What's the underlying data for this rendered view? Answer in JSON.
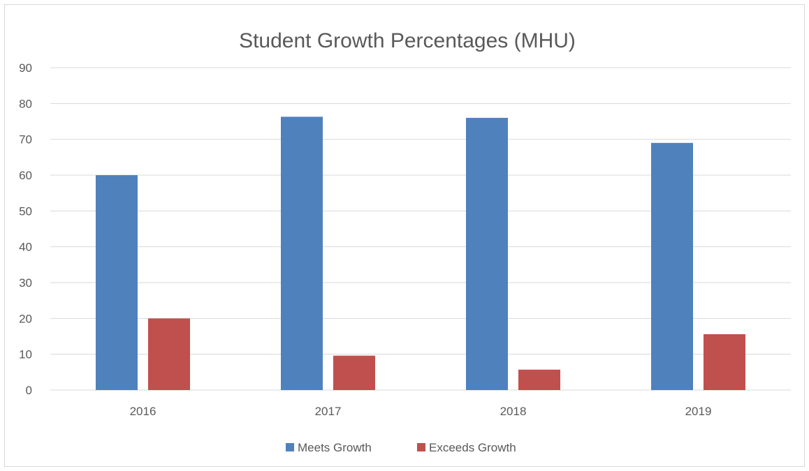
{
  "chart_data": {
    "type": "bar",
    "title": "Student Growth Percentages (MHU)",
    "xlabel": "",
    "ylabel": "",
    "categories": [
      "2016",
      "2017",
      "2018",
      "2019"
    ],
    "series": [
      {
        "name": "Meets Growth",
        "values": [
          60,
          76.3,
          76,
          69
        ],
        "color": "#4f81bd"
      },
      {
        "name": "Exceeds Growth",
        "values": [
          20,
          9.6,
          5.7,
          15.6
        ],
        "color": "#c0504d"
      }
    ],
    "ylim": [
      0,
      90
    ],
    "yticks": [
      "0",
      "10",
      "20",
      "30",
      "40",
      "50",
      "60",
      "70",
      "80",
      "90"
    ],
    "grid": true,
    "legend_position": "bottom"
  }
}
